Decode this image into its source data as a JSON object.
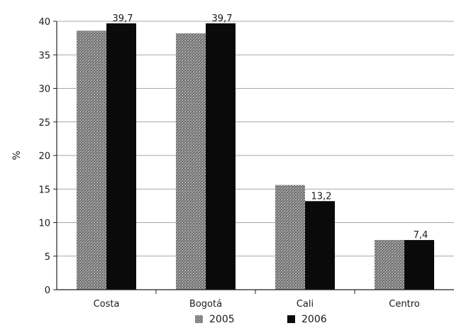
{
  "chart_data": {
    "type": "bar",
    "categories": [
      "Costa",
      "Bogotá",
      "Cali",
      "Centro"
    ],
    "series": [
      {
        "name": "2005",
        "values": [
          38.6,
          38.2,
          15.6,
          7.4
        ],
        "labels": [
          "",
          "",
          "",
          ""
        ],
        "color": "#8c8c8c",
        "pattern": "hatched"
      },
      {
        "name": "2006",
        "values": [
          39.7,
          39.7,
          13.2,
          7.4
        ],
        "labels": [
          "39,7",
          "39,7",
          "13,2",
          "7,4"
        ],
        "color": "#0a0a0a",
        "pattern": "solid"
      }
    ],
    "ylabel": "%",
    "xlabel": "",
    "ylim": [
      0,
      40
    ],
    "yticks": [
      0,
      5,
      10,
      15,
      20,
      25,
      30,
      35,
      40
    ],
    "grid": true,
    "legend": "bottom"
  }
}
